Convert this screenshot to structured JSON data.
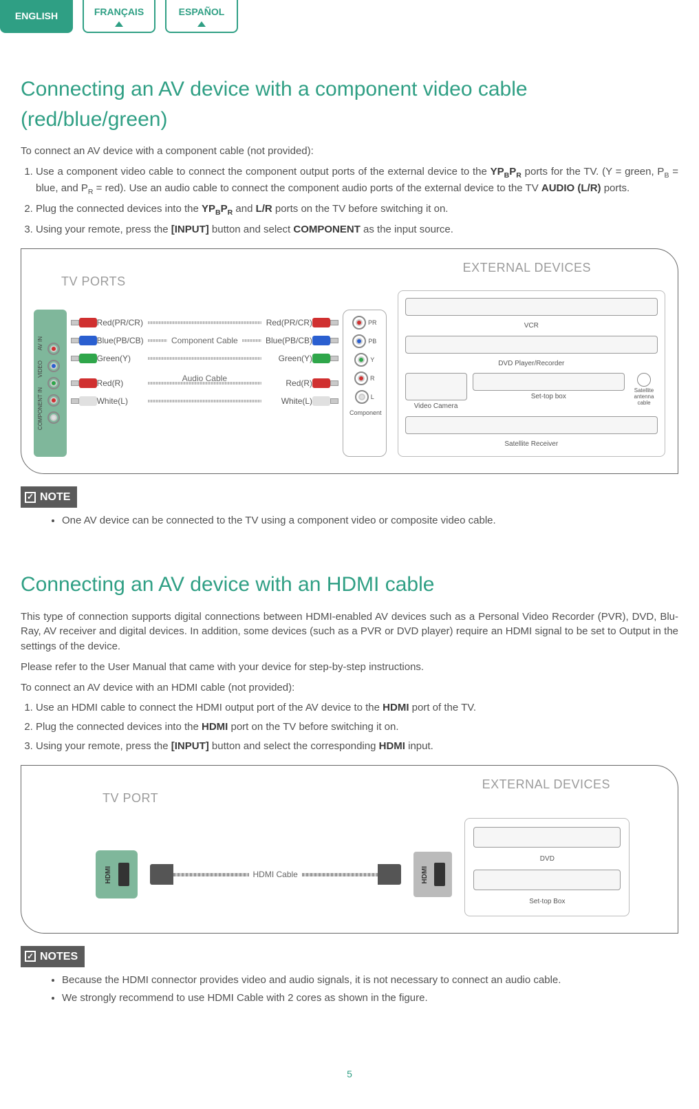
{
  "colors": {
    "accent": "#2f9f84",
    "text": "#505050",
    "muted": "#9b9b9b",
    "port_bg": "#7fb79b"
  },
  "lang_tabs": [
    {
      "label": "ENGLISH",
      "active": true
    },
    {
      "label": "FRANÇAIS",
      "active": false
    },
    {
      "label": "ESPAÑOL",
      "active": false
    }
  ],
  "section1": {
    "heading": "Connecting an AV device with a component video cable (red/blue/green)",
    "intro": "To connect an AV device with a component cable (not provided):",
    "step1_a": "Use a component video cable to connect the component output ports of the external device to the ",
    "step1_b": " ports for the TV. (Y = green, P",
    "step1_c": " = blue, and P",
    "step1_d": " = red). Use an audio cable to connect the component audio ports of the external device to the TV ",
    "step1_e": " ports.",
    "step1_bold1": "YP",
    "step1_bold1_sub1": "B",
    "step1_bold1_mid": "P",
    "step1_bold1_sub2": "R",
    "step1_sub_b": "B",
    "step1_sub_r": "R",
    "step1_bold2": "AUDIO (L/R)",
    "step2_a": "Plug the connected devices into the ",
    "step2_b": " and ",
    "step2_c": " ports on the TV before switching it on.",
    "step2_bold1": "YP",
    "step2_bold1_sub1": "B",
    "step2_bold1_mid": "P",
    "step2_bold1_sub2": "R",
    "step2_bold2": "L/R",
    "step3_a": "Using your remote, press the ",
    "step3_b": " button and select ",
    "step3_c": " as the input source.",
    "step3_bold1": "[INPUT]",
    "step3_bold2": "COMPONENT"
  },
  "diagram1": {
    "tv_ports_label": "TV PORTS",
    "ext_devices_label": "EXTERNAL DEVICES",
    "vert_labels": {
      "top": "AV IN",
      "mid": "VIDEO",
      "bot": "COMPONENT IN",
      "y": "Y",
      "pb": "PB",
      "pr": "PR",
      "l": "L",
      "r": "R"
    },
    "cable_labels_left": [
      "Red(PR/CR)",
      "Blue(PB/CB)",
      "Green(Y)",
      "Red(R)",
      "White(L)"
    ],
    "cable_labels_right": [
      "Red(PR/CR)",
      "Blue(PB/CB)",
      "Green(Y)",
      "Red(R)",
      "White(L)"
    ],
    "component_cable": "Component Cable",
    "audio_cable": "Audio Cable",
    "ext_port_labels": [
      "PR",
      "PB",
      "Y",
      "R",
      "L"
    ],
    "ext_port_group": "Component",
    "cable_colors": [
      "#d03030",
      "#2a5fd0",
      "#2fa64a",
      "#d03030",
      "#e0e0e0"
    ],
    "devices": {
      "vcr": "VCR",
      "dvd": "DVD Player/Recorder",
      "camera": "Video Camera",
      "stb": "Set-top box",
      "sat_ant": "Satellite antenna cable",
      "sat_recv": "Satellite Receiver"
    }
  },
  "note1": {
    "badge": "NOTE",
    "items": [
      "One AV device can be connected to the TV using a component video or composite video cable."
    ]
  },
  "section2": {
    "heading": "Connecting an AV device with an HDMI cable",
    "p1": "This type of connection supports digital connections between HDMI-enabled AV devices such as a Personal Video Recorder (PVR), DVD, Blu-Ray, AV receiver and digital devices. In addition, some devices (such as a PVR or DVD player) require an HDMI signal to be set to Output in the settings of the device.",
    "p2": "Please refer to the User Manual that came with your device for step-by-step instructions.",
    "p3": "To connect an AV device with an HDMI cable (not provided):",
    "step1_a": "Use an HDMI cable to connect the HDMI output port of the AV device to the ",
    "step1_b": " port of the TV.",
    "step1_bold": "HDMI",
    "step2_a": "Plug the connected devices into the ",
    "step2_b": " port on the TV before switching it on.",
    "step2_bold": "HDMI",
    "step3_a": "Using your remote, press the ",
    "step3_b": " button and select the corresponding ",
    "step3_c": " input.",
    "step3_bold1": "[INPUT]",
    "step3_bold2": "HDMI"
  },
  "diagram2": {
    "tv_port_label": "TV PORT",
    "ext_devices_label": "EXTERNAL DEVICES",
    "hdmi": "HDMI",
    "hdmi_cable": "HDMI Cable",
    "devices": {
      "dvd": "DVD",
      "stb": "Set-top Box"
    }
  },
  "note2": {
    "badge": "NOTES",
    "items": [
      "Because the HDMI connector provides video and audio signals, it is not necessary to connect an audio cable.",
      "We strongly recommend to use HDMI Cable with 2 cores as shown in the figure."
    ]
  },
  "page_number": "5"
}
